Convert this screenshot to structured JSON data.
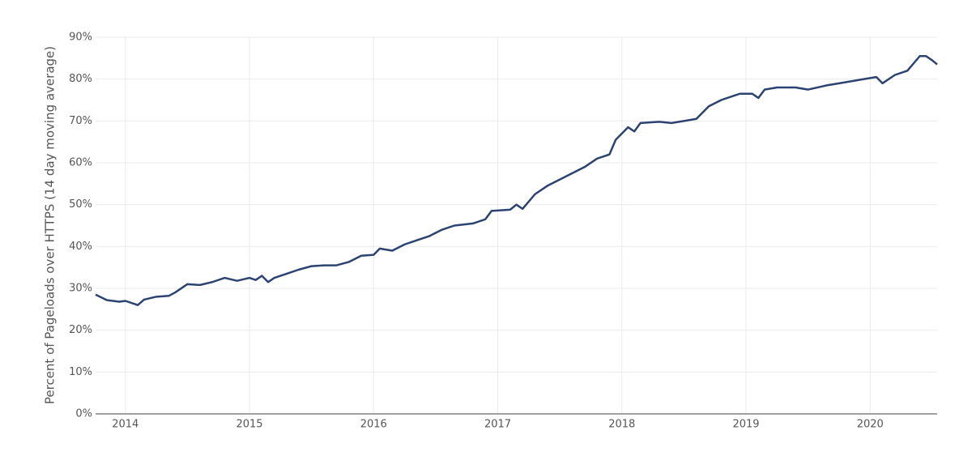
{
  "chart_data": {
    "type": "line",
    "y_label": "Percent of Pageloads over HTTPS (14 day moving average)",
    "x": [
      2013.76,
      2013.85,
      2013.95,
      2014.0,
      2014.05,
      2014.1,
      2014.15,
      2014.25,
      2014.35,
      2014.4,
      2014.5,
      2014.6,
      2014.7,
      2014.8,
      2014.9,
      2015.0,
      2015.05,
      2015.1,
      2015.15,
      2015.2,
      2015.3,
      2015.4,
      2015.5,
      2015.6,
      2015.7,
      2015.8,
      2015.9,
      2016.0,
      2016.05,
      2016.15,
      2016.25,
      2016.35,
      2016.45,
      2016.55,
      2016.65,
      2016.8,
      2016.9,
      2016.95,
      2017.1,
      2017.15,
      2017.2,
      2017.3,
      2017.4,
      2017.5,
      2017.6,
      2017.7,
      2017.8,
      2017.9,
      2017.95,
      2018.05,
      2018.1,
      2018.15,
      2018.3,
      2018.4,
      2018.5,
      2018.6,
      2018.7,
      2018.8,
      2018.9,
      2018.95,
      2019.05,
      2019.1,
      2019.15,
      2019.25,
      2019.4,
      2019.5,
      2019.65,
      2019.75,
      2019.85,
      2019.95,
      2020.05,
      2020.1,
      2020.2,
      2020.3,
      2020.4,
      2020.45,
      2020.5,
      2020.54
    ],
    "series": [
      {
        "color": "#2c4372",
        "values": [
          28.5,
          27.2,
          26.8,
          27,
          26.5,
          26,
          27.3,
          28,
          28.2,
          29,
          31,
          30.8,
          31.5,
          32.5,
          31.8,
          32.5,
          32,
          33,
          31.5,
          32.5,
          33.5,
          34.5,
          35.3,
          35.5,
          35.5,
          36.3,
          37.8,
          38,
          39.5,
          39,
          40.5,
          41.5,
          42.5,
          44,
          45,
          45.5,
          46.5,
          48.5,
          48.8,
          50,
          49,
          52.5,
          54.5,
          56,
          57.5,
          59,
          61,
          62,
          65.5,
          68.5,
          67.5,
          69.5,
          69.8,
          69.5,
          70,
          70.5,
          73.5,
          75,
          76,
          76.5,
          76.5,
          75.5,
          77.5,
          78,
          78,
          77.5,
          78.5,
          79,
          79.5,
          80,
          80.5,
          79,
          81,
          82,
          85.5,
          85.5,
          84.5,
          83.5
        ]
      }
    ],
    "xlim": [
      2013.76,
      2020.54
    ],
    "xticks": [
      2014,
      2015,
      2016,
      2017,
      2018,
      2019,
      2020
    ],
    "ylim": [
      0,
      90
    ],
    "yticks": [
      {
        "value": 0,
        "label": "0%"
      },
      {
        "value": 10,
        "label": "10%"
      },
      {
        "value": 20,
        "label": "20%"
      },
      {
        "value": 30,
        "label": "30%"
      },
      {
        "value": 40,
        "label": "40%"
      },
      {
        "value": 50,
        "label": "50%"
      },
      {
        "value": 60,
        "label": "60%"
      },
      {
        "value": 70,
        "label": "70%"
      },
      {
        "value": 80,
        "label": "80%"
      },
      {
        "value": 90,
        "label": "90%"
      }
    ],
    "grid": true
  }
}
